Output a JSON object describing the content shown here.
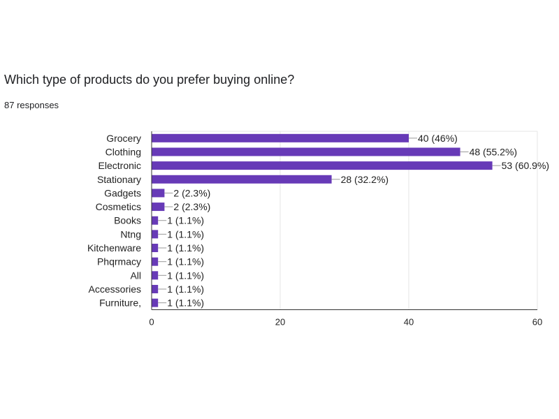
{
  "question": {
    "title": "Which type of products do you prefer buying online?",
    "responses": "87 responses"
  },
  "colors": {
    "bar": "#673ab7",
    "grid": "#e6e6e6",
    "axis": "#333333",
    "text": "#222222",
    "label_line": "#999999"
  },
  "chart_data": {
    "type": "bar",
    "orientation": "horizontal",
    "title": "",
    "xlabel": "",
    "ylabel": "",
    "categories": [
      "Grocery",
      "Clothing",
      "Electronic",
      "Stationary",
      "Gadgets",
      "Cosmetics",
      "Books",
      "Ntng",
      "Kitchenware",
      "Phqrmacy",
      "All",
      "Accessories",
      "Furniture,"
    ],
    "values": [
      40,
      48,
      53,
      28,
      2,
      2,
      1,
      1,
      1,
      1,
      1,
      1,
      1
    ],
    "data_labels": [
      "40 (46%)",
      "48 (55.2%)",
      "53 (60.9%)",
      "28 (32.2%)",
      "2 (2.3%)",
      "2 (2.3%)",
      "1 (1.1%)",
      "1 (1.1%)",
      "1 (1.1%)",
      "1 (1.1%)",
      "1 (1.1%)",
      "1 (1.1%)",
      "1 (1.1%)"
    ],
    "xlim": [
      0,
      60
    ],
    "xticks": [
      0,
      20,
      40,
      60
    ],
    "grid": true,
    "legend": "none"
  }
}
